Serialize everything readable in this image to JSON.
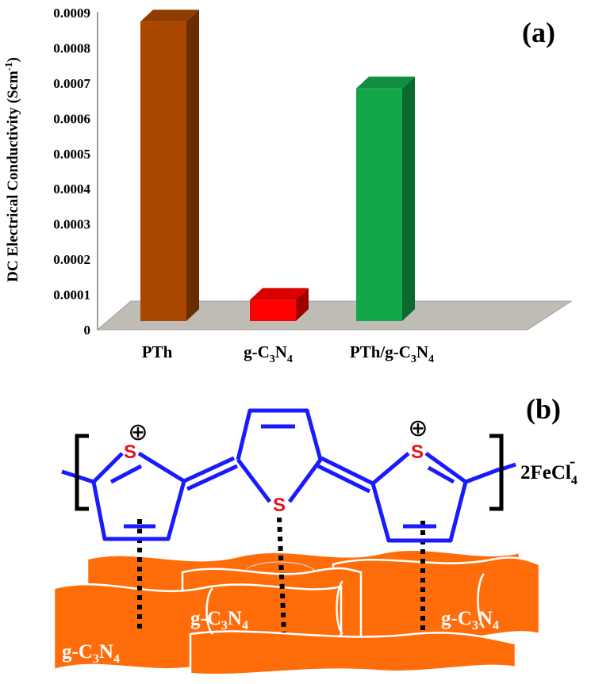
{
  "chart_data": {
    "type": "bar",
    "panel_label": "(a)",
    "categories": [
      "PTh",
      "g-C3N4",
      "PTh/g-C3N4"
    ],
    "category_parts": [
      {
        "base": "PTh",
        "parts": []
      },
      {
        "base": "",
        "parts": [
          [
            "g-C",
            ""
          ],
          [
            "3",
            "sub"
          ],
          [
            "N",
            ""
          ],
          [
            "4",
            "sub"
          ]
        ]
      },
      {
        "base": "",
        "parts": [
          [
            "PTh/g-C",
            ""
          ],
          [
            "3",
            "sub"
          ],
          [
            "N",
            ""
          ],
          [
            "4",
            "sub"
          ]
        ]
      }
    ],
    "values": [
      0.00085,
      6e-05,
      0.00066
    ],
    "colors": [
      "#a94600",
      "#ff0000",
      "#12a84a"
    ],
    "ylabel": "DC Electrical Conductivity (Scm-1)",
    "ylabel_parts": {
      "main": "DC Electrical Conductivity (Scm",
      "sup": "-1",
      "close": ")"
    },
    "ylim": [
      0,
      0.0009
    ],
    "yticks": [
      "0",
      "0.0001",
      "0.0002",
      "0.0003",
      "0.0004",
      "0.0005",
      "0.0006",
      "0.0007",
      "0.0008",
      "0.0009"
    ],
    "grid": false,
    "style": "3d"
  },
  "schematic": {
    "panel_label": "(b)",
    "charge_symbol": "⊕",
    "sulfur": [
      "S",
      "S",
      "S"
    ],
    "counter_ion": {
      "base": "2FeCl",
      "sub": "4",
      "sup": "-"
    },
    "substrate_label": {
      "parts": [
        [
          "g-C",
          ""
        ],
        [
          "3",
          "sub"
        ],
        [
          "N",
          ""
        ],
        [
          "4",
          "sub"
        ]
      ]
    },
    "colors": {
      "bond": "#1a1aff",
      "substrate": "#ff6d0b",
      "sulfur": "#e4131b"
    }
  }
}
